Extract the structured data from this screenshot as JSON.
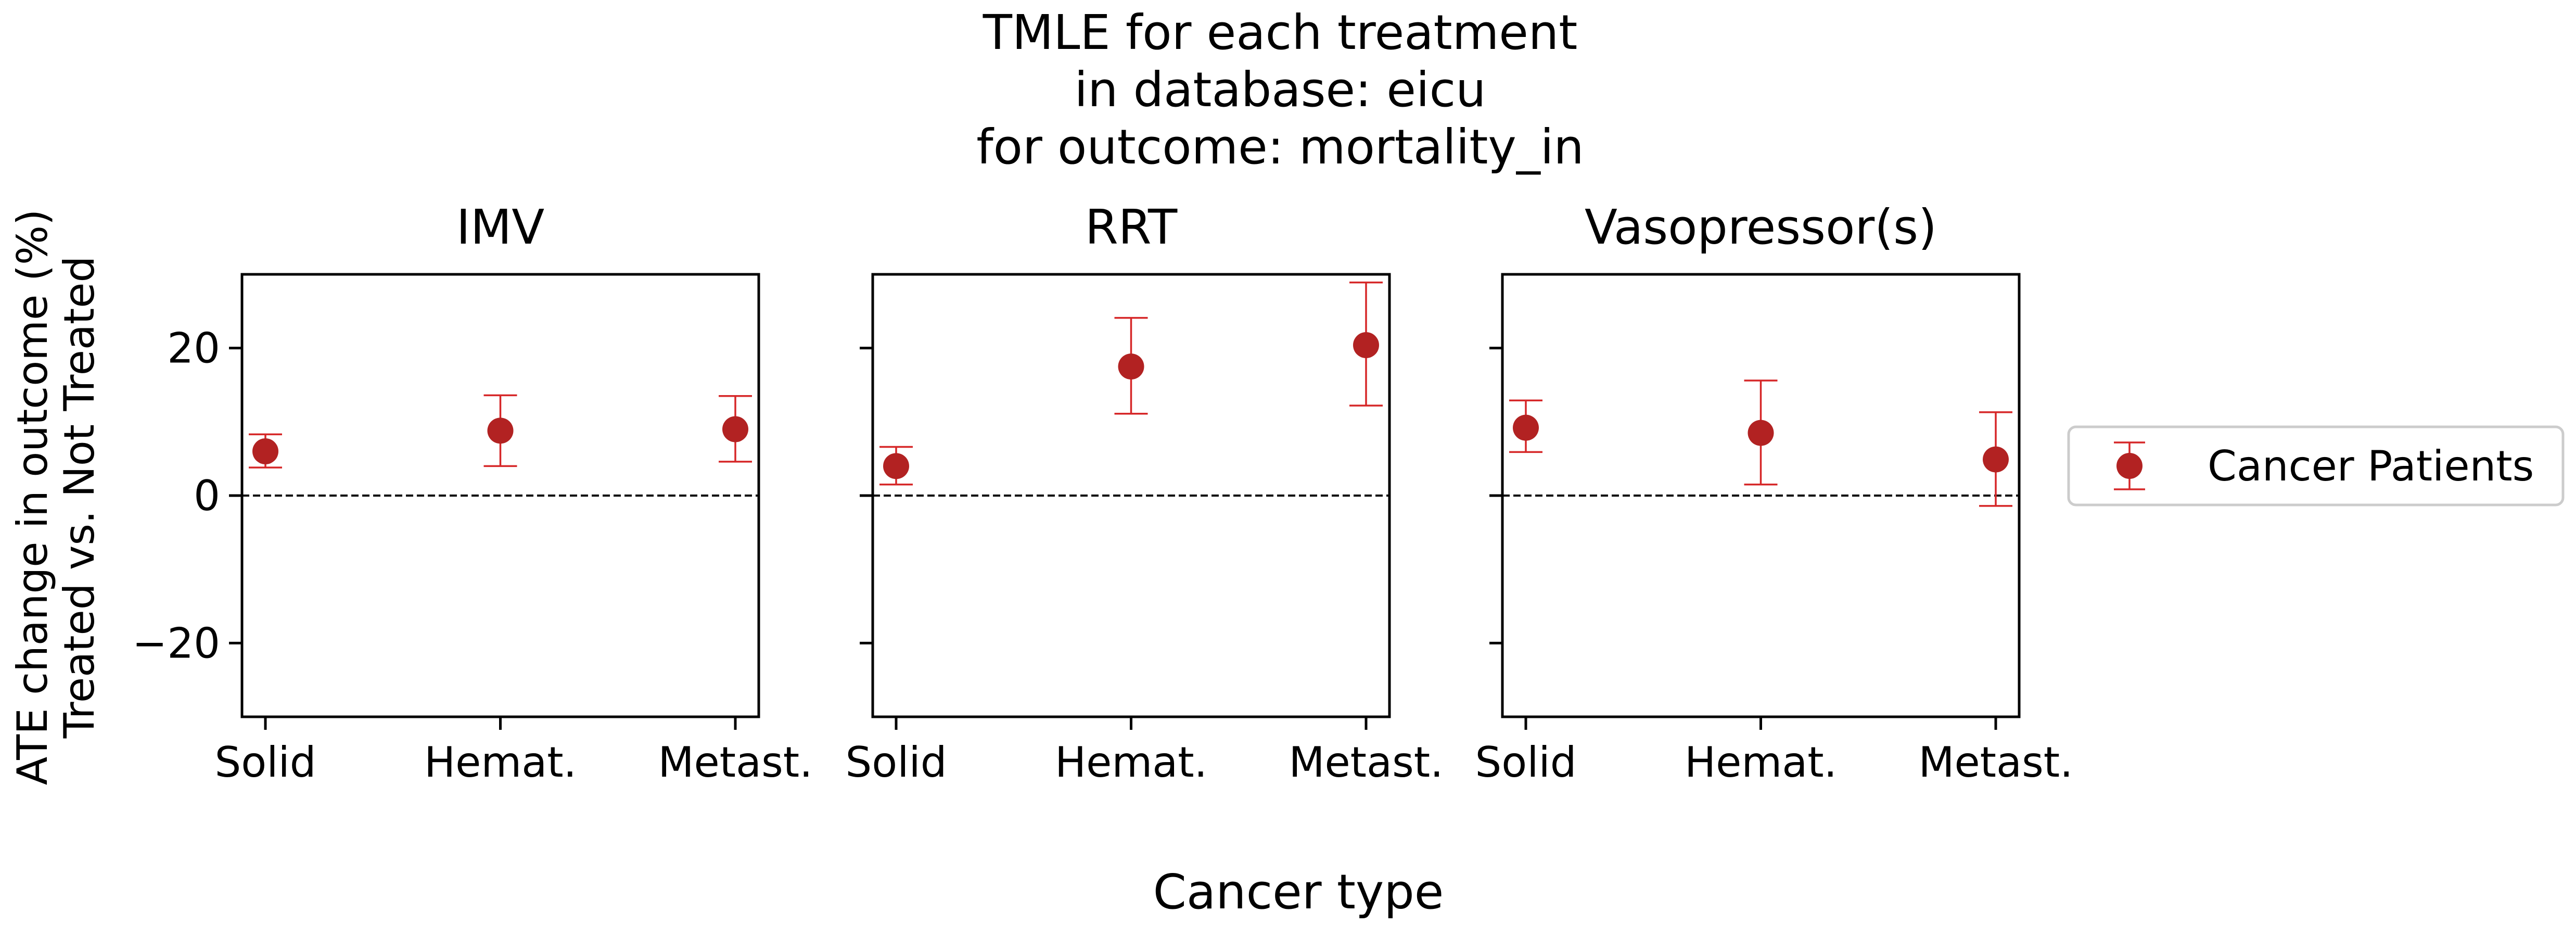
{
  "figure": {
    "title_lines": [
      "TMLE for each treatment",
      "in database: eicu",
      "for outcome: mortality_in"
    ],
    "supxlabel": "Cancer type",
    "supylabel_lines": [
      "ATE change in outcome (%)",
      "Treated vs. Not Treated"
    ]
  },
  "colors": {
    "marker": "#b22222",
    "errorbar": "#d62728",
    "reference_line": "#000000",
    "axes": "#000000",
    "legend_border": "#cccccc"
  },
  "chart_data": {
    "type": "scatter",
    "marker_style": "circle with error bars",
    "categories": [
      "Solid",
      "Hemat.",
      "Metast."
    ],
    "ylim": [
      -30,
      30
    ],
    "yticks": [
      -20,
      0,
      20
    ],
    "ytick_labels": [
      "−20",
      "0",
      "20"
    ],
    "sharey": true,
    "reference_line": {
      "y": 0,
      "style": "dashed"
    },
    "legend": {
      "entries": [
        "Cancer Patients"
      ],
      "placement": "outside right"
    },
    "panels": [
      {
        "title": "IMV",
        "series": [
          {
            "name": "Cancer Patients",
            "values": [
              6.0,
              8.8,
              9.0
            ],
            "err_low": [
              3.8,
              4.0,
              4.6
            ],
            "err_high": [
              8.3,
              13.6,
              13.5
            ]
          }
        ]
      },
      {
        "title": "RRT",
        "series": [
          {
            "name": "Cancer Patients",
            "values": [
              4.0,
              17.5,
              20.4
            ],
            "err_low": [
              1.5,
              11.1,
              12.2
            ],
            "err_high": [
              6.6,
              24.1,
              28.9
            ]
          }
        ]
      },
      {
        "title": "Vasopressor(s)",
        "series": [
          {
            "name": "Cancer Patients",
            "values": [
              9.2,
              8.5,
              4.9
            ],
            "err_low": [
              5.9,
              1.5,
              -1.4
            ],
            "err_high": [
              12.9,
              15.6,
              11.3
            ]
          }
        ]
      }
    ]
  }
}
